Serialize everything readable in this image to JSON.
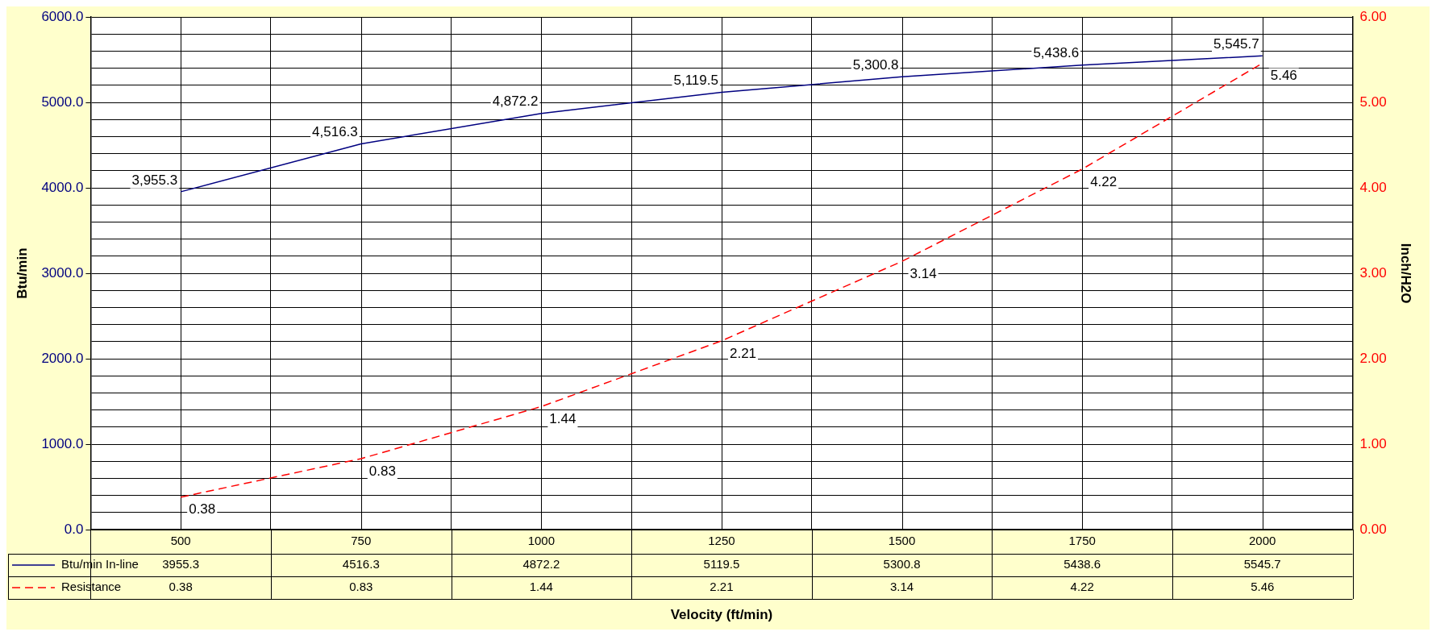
{
  "chart_data": {
    "type": "line",
    "xlabel": "Velocity (ft/min)",
    "ylabel": "Btu/min",
    "y2label": "Inch/H2O",
    "categories": [
      "500",
      "750",
      "1000",
      "1250",
      "1500",
      "1750",
      "2000"
    ],
    "series": [
      {
        "name": "Btu/min In-line",
        "color": "#000080",
        "line_style": "solid",
        "values": [
          3955.3,
          4516.3,
          4872.2,
          5119.5,
          5300.8,
          5438.6,
          5545.7
        ]
      },
      {
        "name": "Resistance",
        "color": "#ff0000",
        "line_style": "dashed",
        "axis": "y2",
        "values": [
          0.38,
          0.83,
          1.44,
          2.21,
          3.14,
          4.22,
          5.46
        ]
      }
    ],
    "annotations": [
      {
        "text": "3,955.3",
        "x": "500",
        "y": 3955.3
      },
      {
        "text": "4,516.3",
        "x": "750",
        "y": 4516.3
      },
      {
        "text": "4,872.2",
        "x": "1000",
        "y": 4872.2
      },
      {
        "text": "5,119.5",
        "x": "1250",
        "y": 5119.5
      },
      {
        "text": "5,300.8",
        "x": "1500",
        "y": 5300.8
      },
      {
        "text": "5,438.6",
        "x": "1750",
        "y": 5438.6
      },
      {
        "text": "5,545.7",
        "x": "2000",
        "y": 5545.7
      },
      {
        "text": "0.38",
        "x": "500",
        "y": 380
      },
      {
        "text": "0.83",
        "x": "750",
        "y": 830
      },
      {
        "text": "1.44",
        "x": "1000",
        "y": 1440
      },
      {
        "text": "2.21",
        "x": "1250",
        "y": 2210
      },
      {
        "text": "3.14",
        "x": "1500",
        "y": 3140
      },
      {
        "text": "4.22",
        "x": "1750",
        "y": 4220
      },
      {
        "text": "5.46",
        "x": "2000",
        "y": 5460
      }
    ],
    "ylim": [
      0,
      6000
    ],
    "yticks": [
      {
        "value": 0,
        "label": "0.0"
      },
      {
        "value": 200,
        "label": null
      },
      {
        "value": 400,
        "label": null
      },
      {
        "value": 600,
        "label": null
      },
      {
        "value": 800,
        "label": null
      },
      {
        "value": 1000,
        "label": "1000.0"
      },
      {
        "value": 1200,
        "label": null
      },
      {
        "value": 1400,
        "label": null
      },
      {
        "value": 1600,
        "label": null
      },
      {
        "value": 1800,
        "label": null
      },
      {
        "value": 2000,
        "label": "2000.0"
      },
      {
        "value": 2200,
        "label": null
      },
      {
        "value": 2400,
        "label": null
      },
      {
        "value": 2600,
        "label": null
      },
      {
        "value": 2800,
        "label": null
      },
      {
        "value": 3000,
        "label": "3000.0"
      },
      {
        "value": 3200,
        "label": null
      },
      {
        "value": 3400,
        "label": null
      },
      {
        "value": 3600,
        "label": null
      },
      {
        "value": 3800,
        "label": null
      },
      {
        "value": 4000,
        "label": "4000.0"
      },
      {
        "value": 4200,
        "label": null
      },
      {
        "value": 4400,
        "label": null
      },
      {
        "value": 4600,
        "label": null
      },
      {
        "value": 4800,
        "label": null
      },
      {
        "value": 5000,
        "label": "5000.0"
      },
      {
        "value": 5200,
        "label": null
      },
      {
        "value": 5400,
        "label": null
      },
      {
        "value": 5600,
        "label": null
      },
      {
        "value": 5800,
        "label": null
      },
      {
        "value": 6000,
        "label": "6000.0"
      }
    ],
    "y2lim": [
      0,
      6
    ],
    "y2ticks": [
      {
        "value": 0,
        "label": "0.00"
      },
      {
        "value": 1,
        "label": "1.00"
      },
      {
        "value": 2,
        "label": "2.00"
      },
      {
        "value": 3,
        "label": "3.00"
      },
      {
        "value": 4,
        "label": "4.00"
      },
      {
        "value": 5,
        "label": "5.00"
      },
      {
        "value": 6,
        "label": "6.00"
      }
    ],
    "grid": true,
    "legend": "bottom left",
    "marker": "none",
    "data_labels": true
  }
}
